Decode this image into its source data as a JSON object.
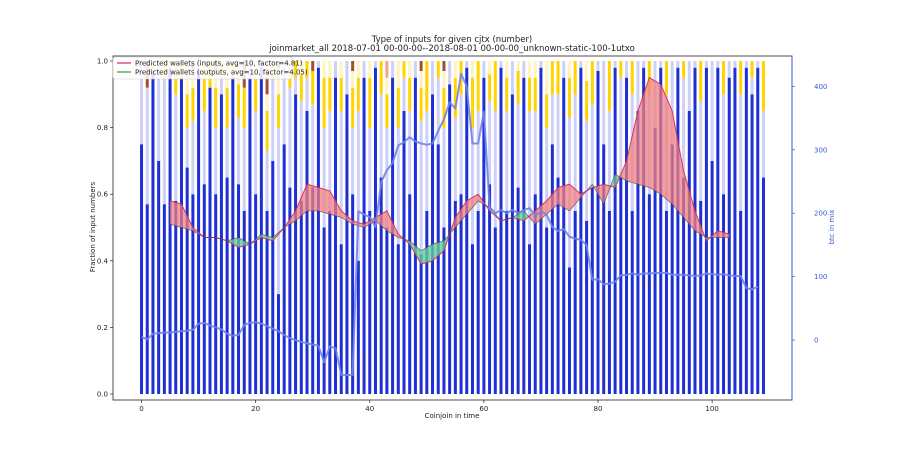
{
  "chart_data": {
    "type": "bar",
    "title": "Type of inputs for given cjtx (number)",
    "subtitle": "joinmarket_all 2018-07-01 00-00-00--2018-08-01 00-00-00_unknown-static-100-1utxo",
    "xlabel": "Coinjoin in time",
    "ylabel": "Fraction of input numbers",
    "y2label": "btc in mix",
    "xlim": [
      -5,
      114
    ],
    "ylim": [
      0,
      1.0
    ],
    "y2lim": [
      -85,
      440
    ],
    "x_ticks": [
      0,
      20,
      40,
      60,
      80,
      100
    ],
    "y_ticks": [
      0.0,
      0.2,
      0.4,
      0.6,
      0.8,
      1.0
    ],
    "y2_ticks": [
      0,
      100,
      200,
      300,
      400
    ],
    "grid": false,
    "legend_position": "top-left",
    "legend": [
      "Predicted wallets (inputs, avg=10, factor=4.81)",
      "Predicted wallets (outputs, avg=10, factor=4.05)"
    ],
    "colors": {
      "bar_blue": "#1f2fd6",
      "bar_lightblue": "#cfd0f6",
      "bar_yellow": "#ffd400",
      "bar_cream": "#fff3c0",
      "bar_brown": "#a0522d",
      "bar_salmon": "#f4a093",
      "inputs_line": "#d62750",
      "inputs_fill": "#f08080",
      "outputs_line": "#2ca02c",
      "outputs_fill": "#66cc99",
      "btc_line": "#6f84ea"
    },
    "stacked_segments": [
      "blue",
      "lightblue",
      "yellow",
      "cream",
      "brown",
      "salmon"
    ],
    "bar_fractions": [
      [
        0.75,
        0.25,
        0,
        0,
        0,
        0
      ],
      [
        0.57,
        0.35,
        0,
        0,
        0.08,
        0
      ],
      [
        0.97,
        0,
        0.03,
        0,
        0,
        0
      ],
      [
        0.7,
        0.3,
        0,
        0,
        0,
        0
      ],
      [
        0.57,
        0.38,
        0.05,
        0,
        0,
        0
      ],
      [
        0.98,
        0,
        0.02,
        0,
        0,
        0
      ],
      [
        0.58,
        0.32,
        0.06,
        0,
        0,
        0.04
      ],
      [
        0.95,
        0,
        0.05,
        0,
        0,
        0
      ],
      [
        0.68,
        0.12,
        0.1,
        0.05,
        0,
        0.05
      ],
      [
        0.6,
        0.22,
        0.1,
        0.05,
        0.03,
        0
      ],
      [
        0.97,
        0.03,
        0,
        0,
        0,
        0
      ],
      [
        0.63,
        0.22,
        0.15,
        0,
        0,
        0
      ],
      [
        0.92,
        0,
        0.08,
        0,
        0,
        0
      ],
      [
        0.6,
        0.2,
        0.12,
        0.05,
        0.03,
        0
      ],
      [
        0.9,
        0.05,
        0.05,
        0,
        0,
        0
      ],
      [
        0.65,
        0.15,
        0.12,
        0.08,
        0,
        0
      ],
      [
        0.95,
        0,
        0.05,
        0,
        0,
        0
      ],
      [
        0.63,
        0.2,
        0.1,
        0.05,
        0,
        0.02
      ],
      [
        0.55,
        0.25,
        0.12,
        0,
        0.08,
        0
      ],
      [
        0.95,
        0.05,
        0,
        0,
        0,
        0
      ],
      [
        0.6,
        0.25,
        0.1,
        0.05,
        0,
        0
      ],
      [
        0.98,
        0.02,
        0,
        0,
        0,
        0
      ],
      [
        0.55,
        0.18,
        0.12,
        0.05,
        0.05,
        0.05
      ],
      [
        0.7,
        0.25,
        0.05,
        0,
        0,
        0
      ],
      [
        0.3,
        0.5,
        0.1,
        0.08,
        0.02,
        0
      ],
      [
        0.75,
        0.25,
        0,
        0,
        0,
        0
      ],
      [
        0.62,
        0.3,
        0.05,
        0.03,
        0,
        0
      ],
      [
        0.9,
        0.05,
        0.05,
        0,
        0,
        0
      ],
      [
        0.58,
        0.3,
        0.08,
        0.04,
        0,
        0
      ],
      [
        0.85,
        0.1,
        0.05,
        0,
        0,
        0
      ],
      [
        0.62,
        0.25,
        0.1,
        0,
        0.03,
        0
      ],
      [
        0.98,
        0.02,
        0,
        0,
        0,
        0
      ],
      [
        0.5,
        0.3,
        0.15,
        0.05,
        0,
        0
      ],
      [
        0.55,
        0.3,
        0.1,
        0.05,
        0,
        0
      ],
      [
        0.95,
        0.05,
        0,
        0,
        0,
        0
      ],
      [
        0.45,
        0.4,
        0.1,
        0.05,
        0,
        0
      ],
      [
        0.9,
        0.1,
        0,
        0,
        0,
        0
      ],
      [
        0.6,
        0.2,
        0.12,
        0.05,
        0.03,
        0
      ],
      [
        0.4,
        0.45,
        0.1,
        0.05,
        0,
        0
      ],
      [
        0.95,
        0.05,
        0,
        0,
        0,
        0
      ],
      [
        0.55,
        0.25,
        0.15,
        0.05,
        0,
        0
      ],
      [
        0.98,
        0.02,
        0,
        0,
        0,
        0
      ],
      [
        0.65,
        0.25,
        0.1,
        0,
        0,
        0
      ],
      [
        0.5,
        0.3,
        0.1,
        0.05,
        0,
        0.05
      ],
      [
        0.95,
        0.05,
        0,
        0,
        0,
        0
      ],
      [
        0.45,
        0.35,
        0.12,
        0.08,
        0,
        0
      ],
      [
        0.85,
        0.1,
        0.05,
        0,
        0,
        0
      ],
      [
        0.6,
        0.25,
        0.1,
        0.05,
        0,
        0
      ],
      [
        0.95,
        0.05,
        0,
        0,
        0,
        0
      ],
      [
        0.42,
        0.4,
        0.1,
        0.05,
        0.03,
        0
      ],
      [
        0.55,
        0.3,
        0.15,
        0,
        0,
        0
      ],
      [
        0.9,
        0.1,
        0,
        0,
        0,
        0
      ],
      [
        0.75,
        0.2,
        0.05,
        0,
        0,
        0
      ],
      [
        0.5,
        0.3,
        0.12,
        0.05,
        0.03,
        0
      ],
      [
        0.93,
        0.07,
        0,
        0,
        0,
        0
      ],
      [
        0.58,
        0.25,
        0.12,
        0.05,
        0,
        0
      ],
      [
        0.6,
        0.3,
        0.1,
        0,
        0,
        0
      ],
      [
        0.98,
        0.02,
        0,
        0,
        0,
        0
      ],
      [
        0.45,
        0.35,
        0.15,
        0.05,
        0,
        0
      ],
      [
        0.55,
        0.3,
        0.15,
        0,
        0,
        0
      ],
      [
        0.95,
        0.05,
        0,
        0,
        0,
        0
      ],
      [
        0.63,
        0.25,
        0.08,
        0.04,
        0,
        0
      ],
      [
        0.5,
        0.35,
        0.15,
        0,
        0,
        0
      ],
      [
        0.98,
        0.02,
        0,
        0,
        0,
        0
      ],
      [
        0.55,
        0.3,
        0.1,
        0.05,
        0,
        0
      ],
      [
        0.9,
        0.1,
        0,
        0,
        0,
        0
      ],
      [
        0.62,
        0.25,
        0.1,
        0.03,
        0,
        0
      ],
      [
        0.95,
        0.05,
        0,
        0,
        0,
        0
      ],
      [
        0.45,
        0.4,
        0.1,
        0.05,
        0,
        0
      ],
      [
        0.6,
        0.25,
        0.1,
        0.05,
        0,
        0
      ],
      [
        0.98,
        0.02,
        0,
        0,
        0,
        0
      ],
      [
        0.5,
        0.3,
        0.1,
        0.1,
        0,
        0
      ],
      [
        0.75,
        0.15,
        0.1,
        0,
        0,
        0
      ],
      [
        0.65,
        0.25,
        0.1,
        0,
        0,
        0
      ],
      [
        0.95,
        0.05,
        0,
        0,
        0,
        0
      ],
      [
        0.38,
        0.45,
        0.12,
        0.05,
        0,
        0
      ],
      [
        0.55,
        0.35,
        0.1,
        0,
        0,
        0
      ],
      [
        0.98,
        0.02,
        0,
        0,
        0,
        0
      ],
      [
        0.52,
        0.3,
        0.12,
        0.06,
        0,
        0
      ],
      [
        0.62,
        0.25,
        0.13,
        0,
        0,
        0
      ],
      [
        0.97,
        0.03,
        0,
        0,
        0,
        0
      ],
      [
        0.75,
        0.25,
        0,
        0,
        0,
        0
      ],
      [
        0.55,
        0.3,
        0.15,
        0,
        0,
        0
      ],
      [
        0.98,
        0.02,
        0,
        0,
        0,
        0
      ],
      [
        0.65,
        0.3,
        0.05,
        0,
        0,
        0
      ],
      [
        0.95,
        0.05,
        0,
        0,
        0,
        0
      ],
      [
        0.55,
        0.35,
        0.1,
        0,
        0,
        0
      ],
      [
        0.85,
        0.15,
        0,
        0,
        0,
        0
      ],
      [
        0.98,
        0.02,
        0,
        0,
        0,
        0
      ],
      [
        0.6,
        0.3,
        0.1,
        0,
        0,
        0
      ],
      [
        0.8,
        0.2,
        0,
        0,
        0,
        0
      ],
      [
        0.98,
        0.02,
        0,
        0,
        0,
        0
      ],
      [
        0.55,
        0.35,
        0.1,
        0,
        0,
        0
      ],
      [
        0.75,
        0.25,
        0,
        0,
        0,
        0
      ],
      [
        0.98,
        0.02,
        0,
        0,
        0,
        0
      ],
      [
        0.65,
        0.3,
        0.05,
        0,
        0,
        0
      ],
      [
        0.85,
        0.15,
        0,
        0,
        0,
        0
      ],
      [
        0.98,
        0.02,
        0,
        0,
        0,
        0
      ],
      [
        0.58,
        0.3,
        0.12,
        0,
        0,
        0
      ],
      [
        0.98,
        0.02,
        0,
        0,
        0,
        0
      ],
      [
        0.7,
        0.3,
        0,
        0,
        0,
        0
      ],
      [
        0.98,
        0.02,
        0,
        0,
        0,
        0
      ],
      [
        0.6,
        0.3,
        0.1,
        0,
        0,
        0
      ],
      [
        0.95,
        0.05,
        0,
        0,
        0,
        0
      ],
      [
        0.98,
        0.02,
        0,
        0,
        0,
        0
      ],
      [
        0.55,
        0.35,
        0.1,
        0,
        0,
        0
      ],
      [
        0.98,
        0.02,
        0,
        0,
        0,
        0
      ],
      [
        0.9,
        0.05,
        0.05,
        0,
        0,
        0
      ],
      [
        0.98,
        0.02,
        0,
        0,
        0,
        0
      ],
      [
        0.65,
        0.2,
        0.15,
        0,
        0,
        0
      ]
    ],
    "series": [
      {
        "name": "Predicted wallets (inputs, avg=10, factor=4.81)",
        "x": [
          5,
          7,
          9,
          11,
          13,
          15,
          17,
          19,
          21,
          23,
          25,
          27,
          29,
          31,
          33,
          35,
          37,
          39,
          41,
          43,
          45,
          47,
          49,
          51,
          53,
          55,
          57,
          59,
          61,
          63,
          65,
          67,
          69,
          71,
          73,
          75,
          77,
          79,
          81,
          83,
          85,
          87,
          89,
          91,
          93,
          95,
          97,
          99,
          101,
          103
        ],
        "values": [
          0.58,
          0.57,
          0.5,
          0.47,
          0.47,
          0.46,
          0.44,
          0.45,
          0.47,
          0.46,
          0.5,
          0.55,
          0.63,
          0.62,
          0.61,
          0.55,
          0.52,
          0.51,
          0.53,
          0.55,
          0.48,
          0.45,
          0.39,
          0.4,
          0.43,
          0.53,
          0.58,
          0.6,
          0.55,
          0.52,
          0.53,
          0.52,
          0.55,
          0.58,
          0.62,
          0.63,
          0.6,
          0.62,
          0.63,
          0.62,
          0.7,
          0.85,
          0.95,
          0.93,
          0.85,
          0.67,
          0.55,
          0.46,
          0.49,
          0.48
        ]
      },
      {
        "name": "Predicted wallets (outputs, avg=10, factor=4.05)",
        "x": [
          5,
          7,
          9,
          11,
          13,
          15,
          17,
          19,
          21,
          23,
          25,
          27,
          29,
          31,
          33,
          35,
          37,
          39,
          41,
          43,
          45,
          47,
          49,
          51,
          53,
          55,
          57,
          59,
          61,
          63,
          65,
          67,
          69,
          71,
          73,
          75,
          77,
          79,
          81,
          83,
          85,
          87,
          89,
          91,
          93,
          95,
          97,
          99,
          101,
          103
        ],
        "values": [
          0.51,
          0.5,
          0.49,
          0.47,
          0.47,
          0.46,
          0.47,
          0.45,
          0.48,
          0.47,
          0.5,
          0.52,
          0.55,
          0.55,
          0.54,
          0.53,
          0.51,
          0.5,
          0.52,
          0.49,
          0.47,
          0.46,
          0.43,
          0.45,
          0.46,
          0.5,
          0.54,
          0.58,
          0.56,
          0.52,
          0.53,
          0.55,
          0.51,
          0.54,
          0.57,
          0.55,
          0.59,
          0.63,
          0.57,
          0.66,
          0.64,
          0.63,
          0.62,
          0.6,
          0.57,
          0.53,
          0.49,
          0.47,
          0.47,
          0.47
        ]
      },
      {
        "name": "btc in mix",
        "axis": "right",
        "x": [
          0,
          1,
          2,
          3,
          4,
          5,
          6,
          7,
          8,
          9,
          10,
          11,
          12,
          13,
          14,
          15,
          16,
          17,
          18,
          19,
          20,
          21,
          22,
          23,
          24,
          25,
          26,
          27,
          28,
          29,
          30,
          31,
          32,
          33,
          34,
          35,
          36,
          37,
          38,
          39,
          40,
          41,
          42,
          43,
          44,
          45,
          46,
          47,
          48,
          49,
          50,
          51,
          52,
          53,
          54,
          55,
          56,
          57,
          58,
          59,
          60,
          61,
          62,
          63,
          64,
          65,
          66,
          67,
          68,
          69,
          70,
          71,
          72,
          73,
          74,
          75,
          76,
          77,
          78,
          79,
          80,
          81,
          82,
          83,
          84,
          85,
          86,
          87,
          88,
          89,
          90,
          91,
          92,
          93,
          94,
          95,
          96,
          97,
          98,
          99,
          100,
          101,
          102,
          103,
          104,
          105,
          106,
          107,
          108
        ],
        "values": [
          5,
          1,
          10,
          11,
          12,
          12,
          13,
          14,
          15,
          16,
          26,
          27,
          23,
          20,
          17,
          10,
          7,
          8,
          24,
          27,
          28,
          26,
          22,
          18,
          14,
          8,
          3,
          0,
          -3,
          -5,
          -7,
          -9,
          -35,
          -10,
          -13,
          -55,
          -55,
          -55,
          203,
          198,
          194,
          178,
          249,
          268,
          279,
          307,
          312,
          320,
          313,
          310,
          308,
          310,
          330,
          348,
          375,
          365,
          420,
          400,
          310,
          310,
          360,
          210,
          200,
          205,
          200,
          205,
          200,
          205,
          208,
          196,
          203,
          198,
          178,
          172,
          175,
          163,
          160,
          158,
          150,
          95,
          96,
          88,
          89,
          92,
          102,
          103,
          105,
          103,
          105,
          105,
          106,
          106,
          106,
          103,
          103,
          103,
          102,
          101,
          102,
          105,
          104,
          103,
          104,
          102,
          101,
          101,
          82,
          80,
          84
        ]
      }
    ]
  }
}
